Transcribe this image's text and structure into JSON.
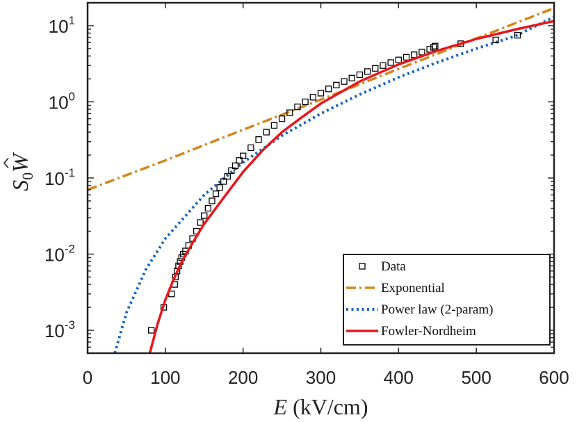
{
  "chart_data": {
    "type": "scatter",
    "xlabel": {
      "var": "E",
      "units": " (kV/cm)"
    },
    "ylabel": {
      "main": "S",
      "sub": "0",
      "hat": "W"
    },
    "xlim": [
      0,
      600
    ],
    "ylim": [
      0.0005,
      20
    ],
    "yscale": "log",
    "x_ticks": [
      0,
      100,
      200,
      300,
      400,
      500,
      600
    ],
    "y_ticks": [
      {
        "value": 0.001,
        "base": "10",
        "exp": "-3"
      },
      {
        "value": 0.01,
        "base": "10",
        "exp": "-2"
      },
      {
        "value": 0.1,
        "base": "10",
        "exp": "-1"
      },
      {
        "value": 1,
        "base": "10",
        "exp": "0"
      },
      {
        "value": 10,
        "base": "10",
        "exp": "1"
      }
    ],
    "grid": false,
    "legend_position": "bottom-right",
    "legend": [
      "Data",
      "Exponential",
      "Power law (2-param)",
      "Fowler-Nordheim"
    ],
    "series": [
      {
        "name": "Data",
        "kind": "markers",
        "color": "#000000",
        "x": [
          82,
          98,
          108,
          112,
          113,
          115,
          117,
          119,
          121,
          123,
          126,
          130,
          135,
          140,
          145,
          150,
          155,
          160,
          165,
          170,
          175,
          180,
          185,
          190,
          195,
          200,
          210,
          220,
          230,
          240,
          250,
          260,
          270,
          280,
          290,
          300,
          310,
          320,
          330,
          340,
          350,
          360,
          370,
          380,
          390,
          400,
          410,
          420,
          430,
          440,
          445,
          447,
          480,
          525,
          553
        ],
        "y": [
          0.001,
          0.002,
          0.003,
          0.004,
          0.005,
          0.006,
          0.007,
          0.008,
          0.009,
          0.01,
          0.011,
          0.013,
          0.016,
          0.02,
          0.026,
          0.032,
          0.04,
          0.05,
          0.062,
          0.075,
          0.09,
          0.105,
          0.125,
          0.145,
          0.17,
          0.195,
          0.25,
          0.32,
          0.4,
          0.49,
          0.6,
          0.72,
          0.86,
          1.0,
          1.15,
          1.3,
          1.48,
          1.66,
          1.85,
          2.05,
          2.27,
          2.5,
          2.75,
          3.0,
          3.28,
          3.55,
          3.85,
          4.15,
          4.5,
          4.9,
          5.2,
          5.4,
          5.8,
          6.5,
          7.5
        ]
      },
      {
        "name": "Exponential",
        "kind": "line",
        "color": "#d4861c",
        "x": [
          0,
          100,
          200,
          300,
          400,
          500,
          600
        ],
        "y": [
          0.07,
          0.17,
          0.43,
          1.07,
          2.7,
          6.8,
          17
        ]
      },
      {
        "name": "Power law (2-param)",
        "kind": "line",
        "color": "#1565c0",
        "x": [
          35,
          50,
          75,
          100,
          150,
          200,
          250,
          300,
          350,
          400,
          450,
          500,
          550,
          600
        ],
        "y": [
          0.0005,
          0.0017,
          0.0063,
          0.016,
          0.06,
          0.16,
          0.36,
          0.7,
          1.25,
          2.1,
          3.3,
          5.0,
          7.3,
          13
        ]
      },
      {
        "name": "Fowler-Nordheim",
        "kind": "line",
        "color": "#e8161c",
        "x": [
          80,
          90,
          100,
          110,
          120,
          135,
          150,
          175,
          200,
          225,
          250,
          275,
          300,
          350,
          400,
          450,
          500,
          550,
          600
        ],
        "y": [
          0.0005,
          0.0012,
          0.0025,
          0.0045,
          0.0075,
          0.014,
          0.025,
          0.055,
          0.12,
          0.23,
          0.4,
          0.62,
          0.95,
          1.85,
          3.1,
          4.7,
          6.7,
          8.9,
          11.5
        ]
      }
    ]
  }
}
